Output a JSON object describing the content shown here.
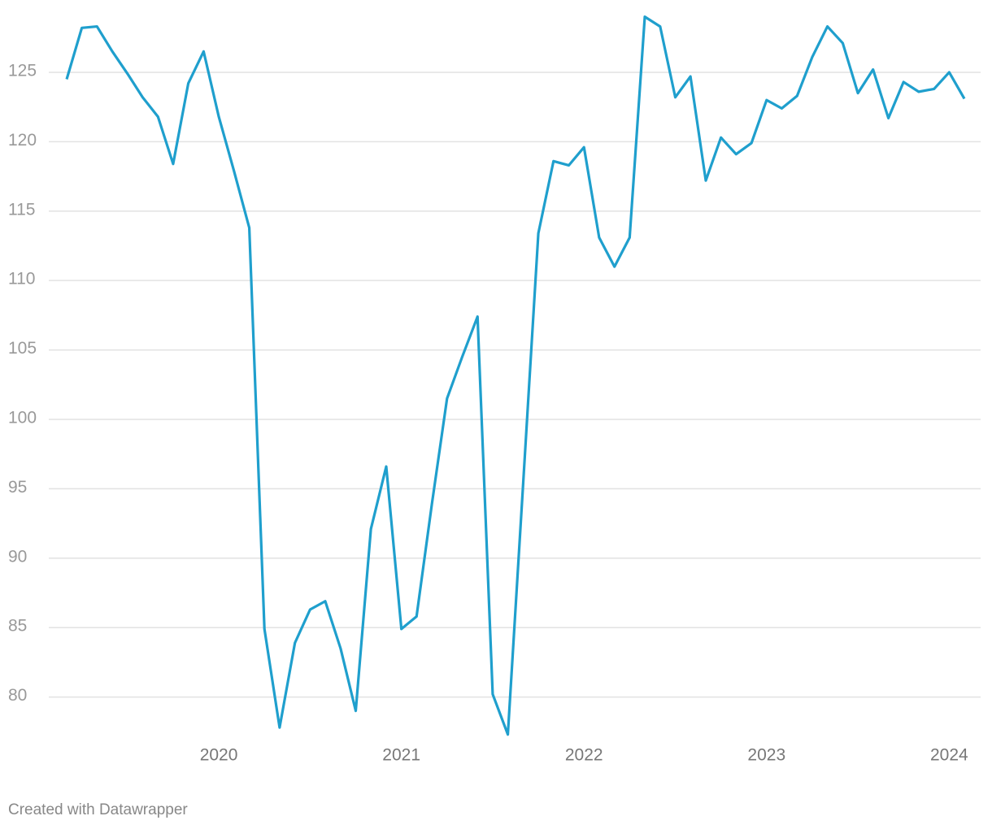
{
  "chart_data": {
    "type": "line",
    "x": [
      2019.167,
      2019.25,
      2019.333,
      2019.417,
      2019.5,
      2019.583,
      2019.667,
      2019.75,
      2019.833,
      2019.917,
      2020,
      2020.083,
      2020.167,
      2020.25,
      2020.333,
      2020.417,
      2020.5,
      2020.583,
      2020.667,
      2020.75,
      2020.833,
      2020.917,
      2021,
      2021.083,
      2021.167,
      2021.25,
      2021.333,
      2021.417,
      2021.5,
      2021.583,
      2021.667,
      2021.75,
      2021.833,
      2021.917,
      2022,
      2022.083,
      2022.167,
      2022.25,
      2022.333,
      2022.417,
      2022.5,
      2022.583,
      2022.667,
      2022.75,
      2022.833,
      2022.917,
      2023,
      2023.083,
      2023.167,
      2023.25,
      2023.333,
      2023.417,
      2023.5,
      2023.583,
      2023.667,
      2023.75,
      2023.833,
      2023.917,
      2024,
      2024.083
    ],
    "series": [
      {
        "color": "#1f9fcd",
        "values": [
          124.5,
          128.2,
          128.3,
          126.5,
          124.9,
          123.2,
          121.8,
          118.4,
          124.2,
          126.5,
          121.8,
          117.9,
          113.8,
          84.9,
          77.8,
          83.9,
          86.3,
          86.9,
          83.5,
          79.0,
          92.1,
          96.6,
          84.9,
          85.8,
          93.9,
          101.5,
          104.5,
          107.4,
          80.2,
          77.3,
          95.4,
          113.4,
          118.6,
          118.3,
          119.6,
          113.1,
          111.0,
          113.1,
          129.0,
          128.3,
          123.2,
          124.7,
          117.2,
          120.3,
          119.1,
          119.9,
          123.0,
          122.4,
          123.3,
          126.1,
          128.3,
          127.1,
          123.5,
          125.2,
          121.7,
          124.3,
          123.6,
          123.8,
          125.0,
          123.1
        ]
      }
    ],
    "xlim": [
      2019.167,
      2024.083
    ],
    "xticks": [
      2020,
      2021,
      2022,
      2023,
      2024
    ],
    "ylim": [
      75,
      130
    ],
    "yticks": [
      80,
      85,
      90,
      95,
      100,
      105,
      110,
      115,
      120,
      125
    ],
    "grid": true,
    "footer": "Created with Datawrapper"
  }
}
